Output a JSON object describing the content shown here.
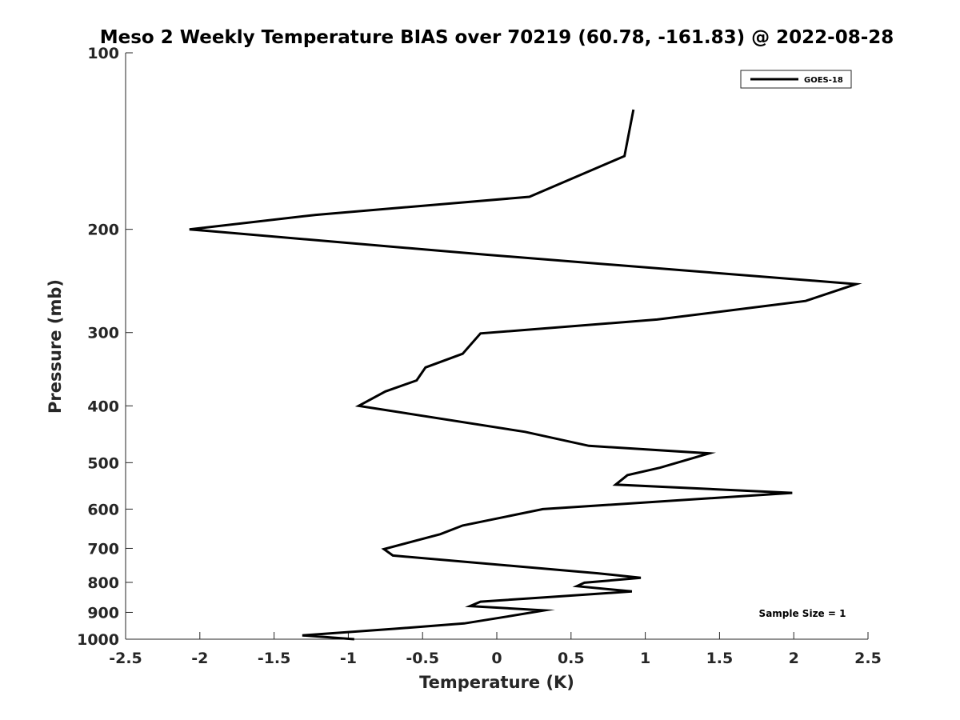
{
  "chart_data": {
    "type": "line",
    "title": "Meso 2 Weekly Temperature BIAS over 70219 (60.78, -161.83) @ 2022-08-28",
    "xlabel": "Temperature (K)",
    "ylabel": "Pressure (mb)",
    "xlim": [
      -2.5,
      2.5
    ],
    "ylim": [
      100,
      1000
    ],
    "y_scale": "log",
    "y_direction": "reversed",
    "grid": false,
    "x_ticks": [
      -2.5,
      -2,
      -1.5,
      -1,
      -0.5,
      0,
      0.5,
      1,
      1.5,
      2,
      2.5
    ],
    "x_tick_labels": [
      "-2.5",
      "-2",
      "-1.5",
      "-1",
      "-0.5",
      "0",
      "0.5",
      "1",
      "1.5",
      "2",
      "2.5"
    ],
    "y_ticks": [
      100,
      200,
      300,
      400,
      500,
      600,
      700,
      800,
      900,
      1000
    ],
    "y_tick_labels": [
      "100",
      "200",
      "300",
      "400",
      "500",
      "600",
      "700",
      "800",
      "900",
      "1000"
    ],
    "legend": {
      "placement": "top-right",
      "entries": [
        "GOES-18"
      ]
    },
    "annotation": "Sample Size = 1",
    "series": [
      {
        "name": "GOES-18",
        "color": "#000000",
        "x": [
          0.92,
          0.86,
          0.22,
          -1.22,
          -2.07,
          -0.07,
          2.42,
          2.08,
          1.08,
          -0.11,
          -0.23,
          -0.48,
          -0.54,
          -0.75,
          -0.93,
          0.19,
          0.62,
          1.43,
          1.1,
          0.88,
          0.8,
          1.99,
          0.31,
          -0.23,
          -0.38,
          -0.76,
          -0.7,
          0.68,
          0.97,
          0.59,
          0.54,
          0.91,
          0.34,
          -0.11,
          -0.18,
          0.32,
          0.07,
          -0.22,
          -0.69,
          -1.31,
          -0.96
        ],
        "y": [
          125,
          150,
          176,
          189,
          200,
          221,
          248,
          265,
          285,
          301,
          326,
          344,
          362,
          378,
          400,
          443,
          468,
          482,
          510,
          525,
          545,
          563,
          600,
          640,
          662,
          702,
          720,
          772,
          786,
          801,
          812,
          829,
          848,
          863,
          878,
          893,
          915,
          940,
          960,
          985,
          1000
        ]
      }
    ]
  }
}
